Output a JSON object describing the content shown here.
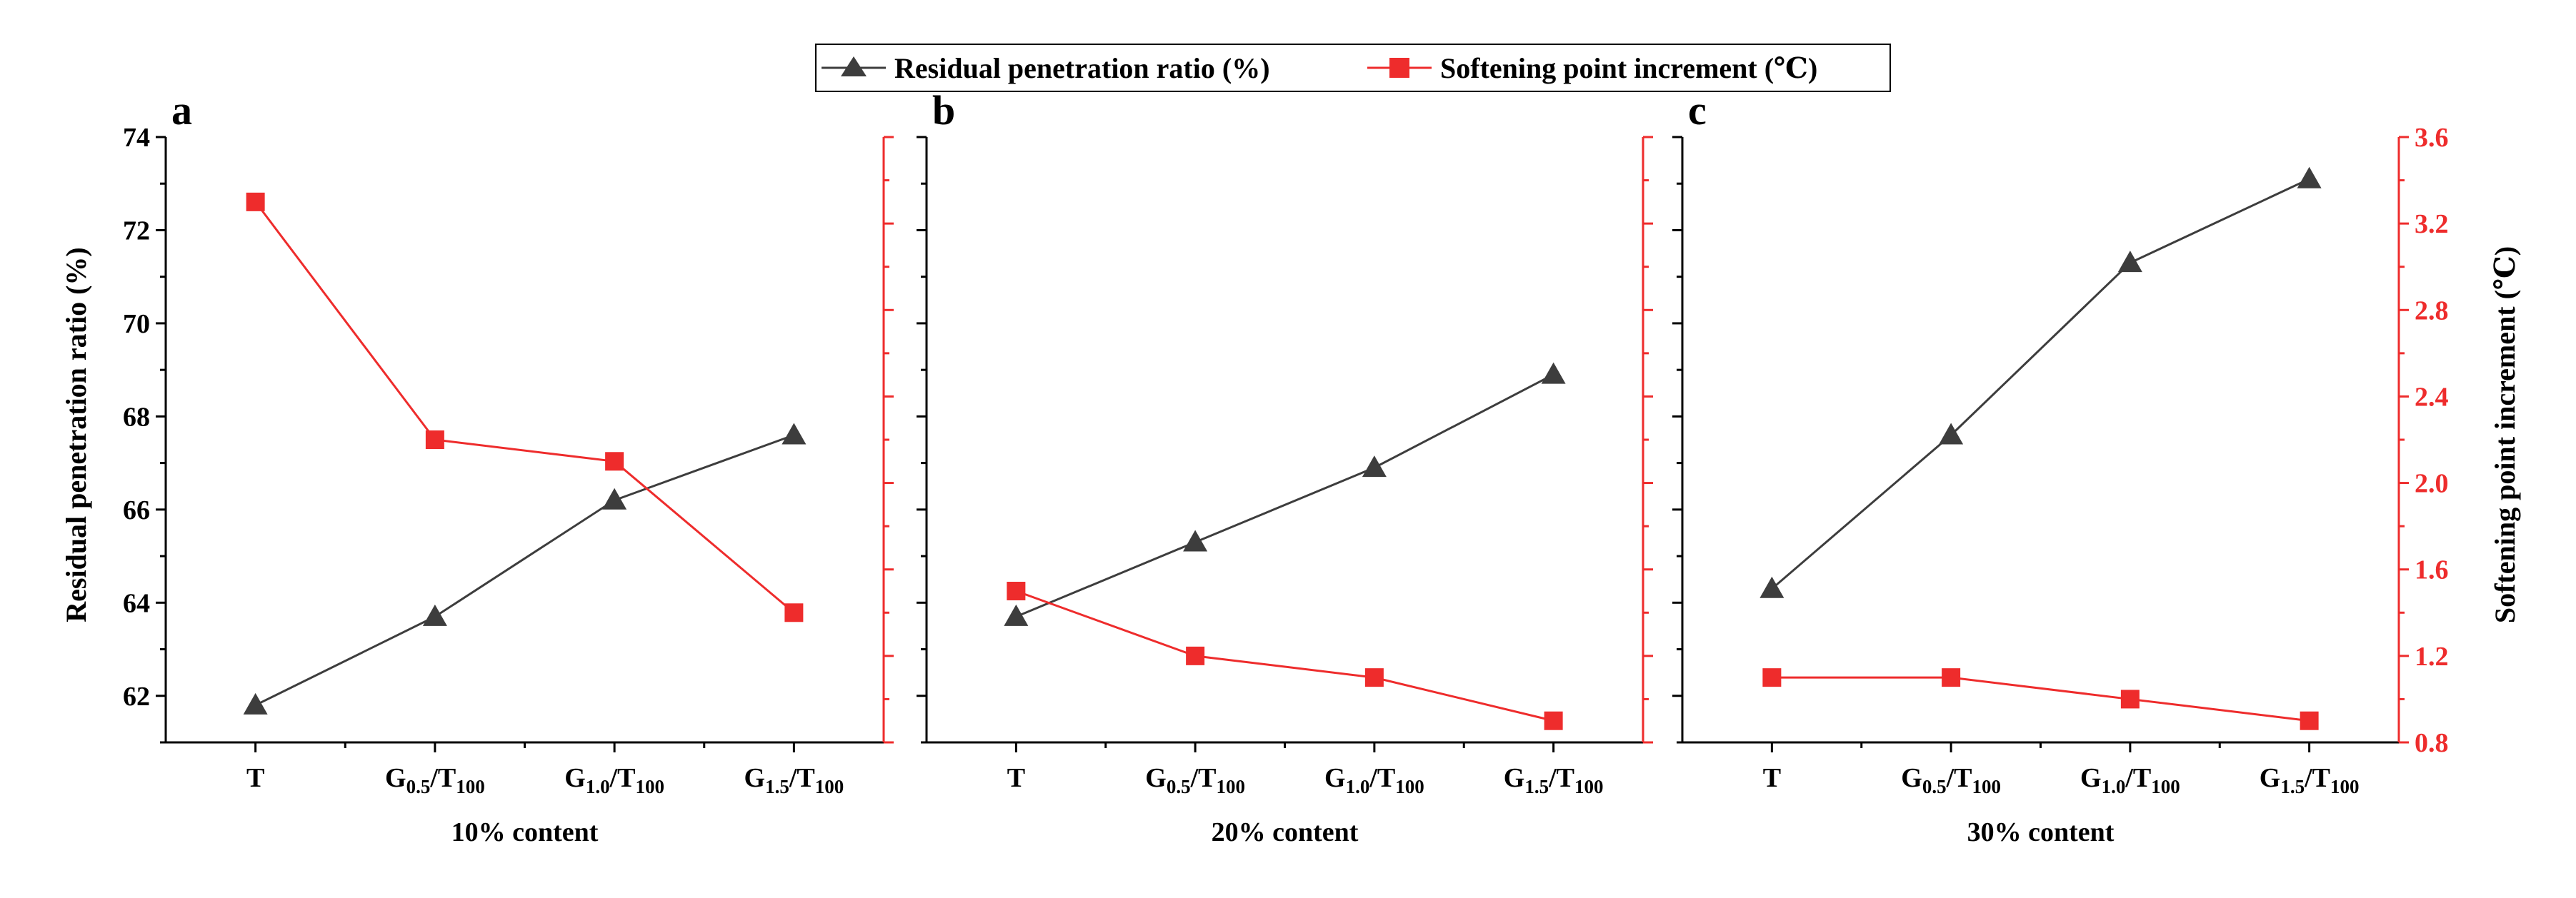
{
  "colors": {
    "residual": "#3d3d3d",
    "softening": "#ee2c2c",
    "axis": "#000000"
  },
  "legend": {
    "residual_label": "Residual penetration ratio (%)",
    "softening_label": "Softening point increment (℃)"
  },
  "left_axis": {
    "label": "Residual penetration ratio (%)",
    "ylim": [
      61,
      74
    ],
    "ticks": [
      62,
      64,
      66,
      68,
      70,
      72,
      74
    ]
  },
  "right_axis": {
    "label": "Softening point increment (℃)",
    "ylim": [
      0.8,
      3.6
    ],
    "ticks": [
      "0.8",
      "1.2",
      "1.6",
      "2.0",
      "2.4",
      "2.8",
      "3.2",
      "3.6"
    ]
  },
  "chart_data": [
    {
      "type": "line",
      "panel_label": "a",
      "xlabel": "10% content",
      "categories": [
        {
          "main": "T",
          "sub": "",
          "after": "",
          "sub2": ""
        },
        {
          "main": "G",
          "sub": "0.5",
          "after": "/T",
          "sub2": "100"
        },
        {
          "main": "G",
          "sub": "1.0",
          "after": "/T",
          "sub2": "100"
        },
        {
          "main": "G",
          "sub": "1.5",
          "after": "/T",
          "sub2": "100"
        }
      ],
      "series": [
        {
          "name": "Residual penetration ratio (%)",
          "axis": "left",
          "values": [
            61.8,
            63.7,
            66.2,
            67.6
          ]
        },
        {
          "name": "Softening point increment (℃)",
          "axis": "right",
          "values": [
            3.3,
            2.2,
            2.1,
            1.4
          ]
        }
      ]
    },
    {
      "type": "line",
      "panel_label": "b",
      "xlabel": "20% content",
      "categories": [
        {
          "main": "T",
          "sub": "",
          "after": "",
          "sub2": ""
        },
        {
          "main": "G",
          "sub": "0.5",
          "after": "/T",
          "sub2": "100"
        },
        {
          "main": "G",
          "sub": "1.0",
          "after": "/T",
          "sub2": "100"
        },
        {
          "main": "G",
          "sub": "1.5",
          "after": "/T",
          "sub2": "100"
        }
      ],
      "series": [
        {
          "name": "Residual penetration ratio (%)",
          "axis": "left",
          "values": [
            63.7,
            65.3,
            66.9,
            68.9
          ]
        },
        {
          "name": "Softening point increment (℃)",
          "axis": "right",
          "values": [
            1.5,
            1.2,
            1.1,
            0.9
          ]
        }
      ]
    },
    {
      "type": "line",
      "panel_label": "c",
      "xlabel": "30% content",
      "categories": [
        {
          "main": "T",
          "sub": "",
          "after": "",
          "sub2": ""
        },
        {
          "main": "G",
          "sub": "0.5",
          "after": "/T",
          "sub2": "100"
        },
        {
          "main": "G",
          "sub": "1.0",
          "after": "/T",
          "sub2": "100"
        },
        {
          "main": "G",
          "sub": "1.5",
          "after": "/T",
          "sub2": "100"
        }
      ],
      "series": [
        {
          "name": "Residual penetration ratio (%)",
          "axis": "left",
          "values": [
            64.3,
            67.6,
            71.3,
            73.1
          ]
        },
        {
          "name": "Softening point increment (℃)",
          "axis": "right",
          "values": [
            1.1,
            1.1,
            1.0,
            0.9
          ]
        }
      ]
    }
  ]
}
